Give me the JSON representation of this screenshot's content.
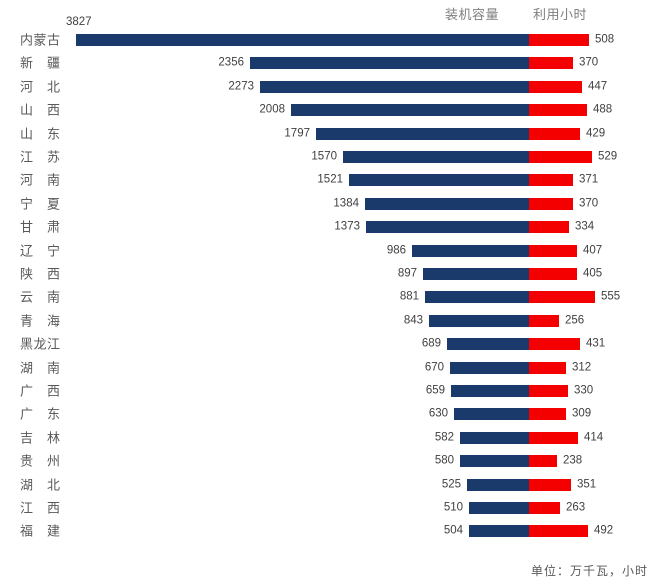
{
  "legend": {
    "capacity_label": "装机容量",
    "hours_label": "利用小时"
  },
  "footer": {
    "unit_note": "单位：万千瓦，小时"
  },
  "colors": {
    "capacity_bar": "#1a3a6b",
    "hours_bar": "#f40000",
    "category_text": "#595959",
    "value_text": "#404040",
    "legend_text": "#7f7f7f"
  },
  "chart_data": {
    "type": "bar",
    "subtype": "tornado",
    "title": "",
    "xlabel": "",
    "ylabel": "",
    "unit_note": "单位：万千瓦，小时",
    "legend_position": "top-center",
    "grid": false,
    "categories": [
      "内蒙古",
      "新疆",
      "河北",
      "山西",
      "山东",
      "江苏",
      "河南",
      "宁夏",
      "甘肃",
      "辽宁",
      "陕西",
      "云南",
      "青海",
      "黑龙江",
      "湖南",
      "广西",
      "广东",
      "吉林",
      "贵州",
      "湖北",
      "江西",
      "福建"
    ],
    "series": [
      {
        "name": "装机容量",
        "direction": "left",
        "color": "#1a3a6b",
        "unit": "万千瓦",
        "axis_range": [
          0,
          3827
        ],
        "values": [
          3827,
          2356,
          2273,
          2008,
          1797,
          1570,
          1521,
          1384,
          1373,
          986,
          897,
          881,
          843,
          689,
          670,
          659,
          630,
          582,
          580,
          525,
          510,
          504
        ]
      },
      {
        "name": "利用小时",
        "direction": "right",
        "color": "#f40000",
        "unit": "小时",
        "axis_range": [
          0,
          555
        ],
        "values": [
          508,
          370,
          447,
          488,
          429,
          529,
          371,
          370,
          334,
          407,
          405,
          555,
          256,
          431,
          312,
          330,
          309,
          414,
          238,
          351,
          263,
          492
        ]
      }
    ]
  }
}
